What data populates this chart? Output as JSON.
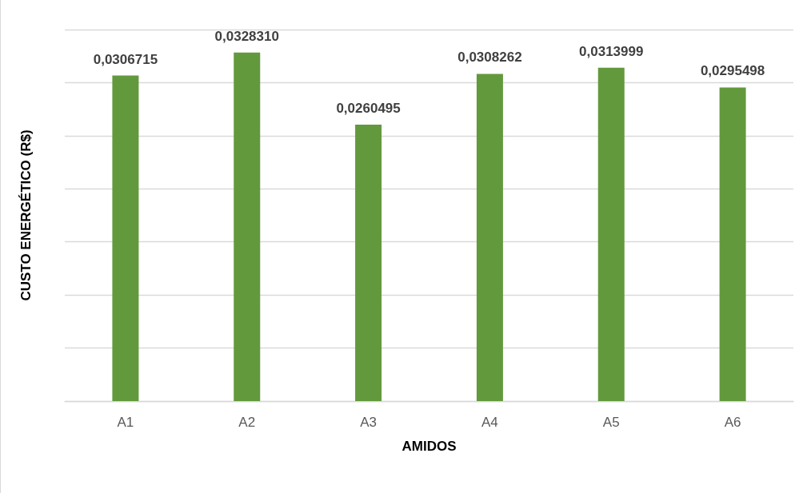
{
  "chart_data": {
    "type": "bar",
    "xlabel": "AMIDOS",
    "ylabel": "CUSTO ENERGÉTICO (R$)",
    "categories": [
      "A1",
      "A2",
      "A3",
      "A4",
      "A5",
      "A6"
    ],
    "values": [
      0.0306715,
      0.032831,
      0.0260495,
      0.0308262,
      0.0313999,
      0.0295498
    ],
    "value_labels": [
      "0,0306715",
      "0,0328310",
      "0,0260495",
      "0,0308262",
      "0,0313999",
      "0,0295498"
    ],
    "color": "#63993d",
    "ylim": [
      0,
      0.035
    ],
    "yticks": [
      {
        "value": 0,
        "label": null
      },
      {
        "value": 0.005,
        "label": null
      },
      {
        "value": 0.01,
        "label": null
      },
      {
        "value": 0.015,
        "label": null
      },
      {
        "value": 0.02,
        "label": null
      },
      {
        "value": 0.025,
        "label": null
      },
      {
        "value": 0.03,
        "label": null
      },
      {
        "value": 0.035,
        "label": null
      }
    ],
    "grid": "y",
    "tick_labels": "x"
  }
}
